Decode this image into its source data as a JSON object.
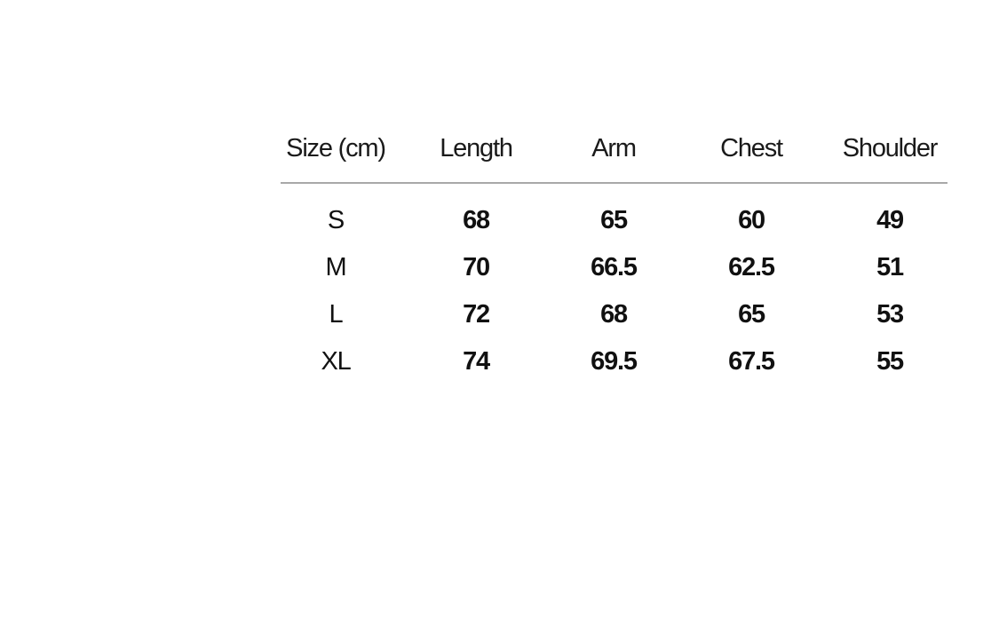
{
  "table": {
    "headers": [
      "Size (cm)",
      "Length",
      "Arm",
      "Chest",
      "Shoulder"
    ],
    "rows": [
      [
        "S",
        "68",
        "65",
        "60",
        "49"
      ],
      [
        "M",
        "70",
        "66.5",
        "62.5",
        "51"
      ],
      [
        "L",
        "72",
        "68",
        "65",
        "53"
      ],
      [
        "XL",
        "74",
        "69.5",
        "67.5",
        "55"
      ]
    ]
  }
}
